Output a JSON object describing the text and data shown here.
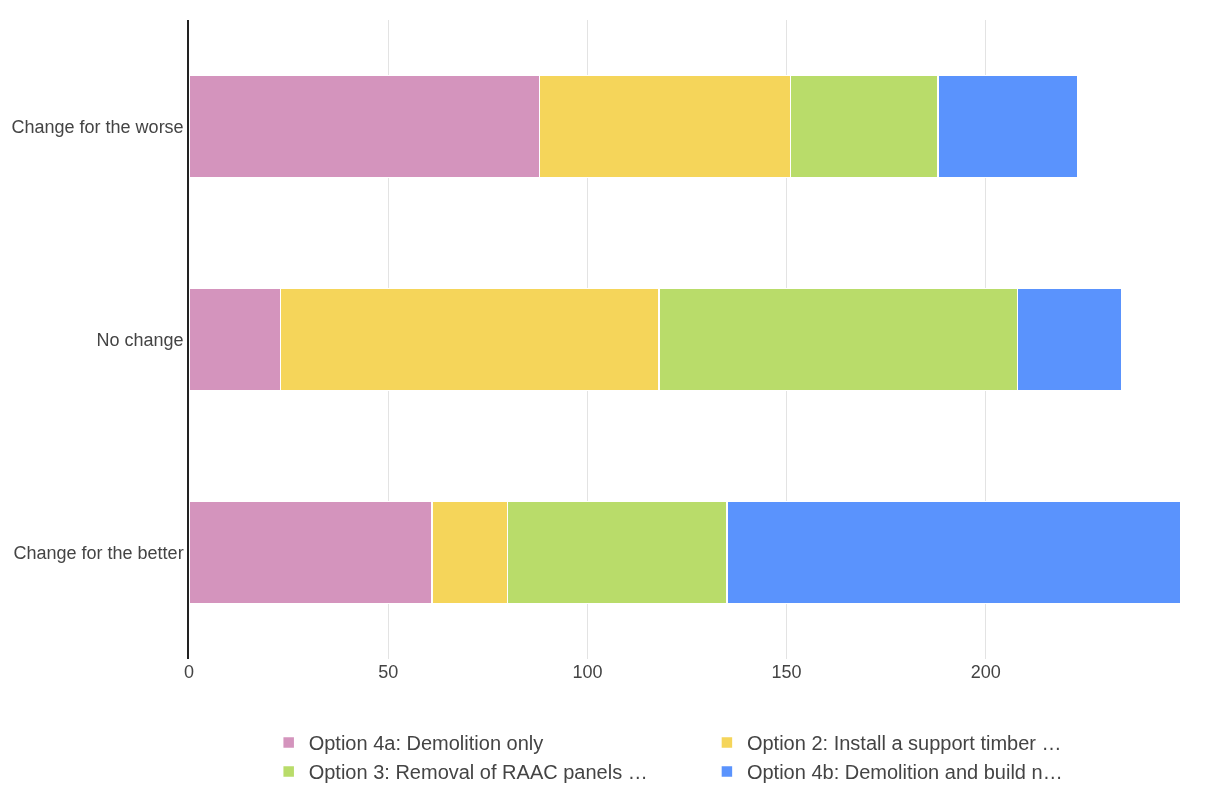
{
  "chart_data": {
    "type": "bar",
    "orientation": "horizontal",
    "stacked": true,
    "categories": [
      "Change for the worse",
      "No change",
      "Change for the better"
    ],
    "series": [
      {
        "name": "Option 4a: Demolition only",
        "color": "#d494bd",
        "values": [
          88,
          23,
          61
        ]
      },
      {
        "name": "Option 2: Install a support timber …",
        "color": "#f5d55a",
        "values": [
          63,
          95,
          19
        ]
      },
      {
        "name": "Option 3: Removal of RAAC panels …",
        "color": "#b9dc6a",
        "values": [
          37,
          90,
          55
        ]
      },
      {
        "name": "Option 4b: Demolition and build n…",
        "color": "#5a93fd",
        "values": [
          35,
          26,
          114
        ]
      }
    ],
    "xlim": [
      0,
      250
    ],
    "xticks": [
      0,
      50,
      100,
      150,
      200
    ],
    "grid": "x",
    "legend": "bottom"
  }
}
